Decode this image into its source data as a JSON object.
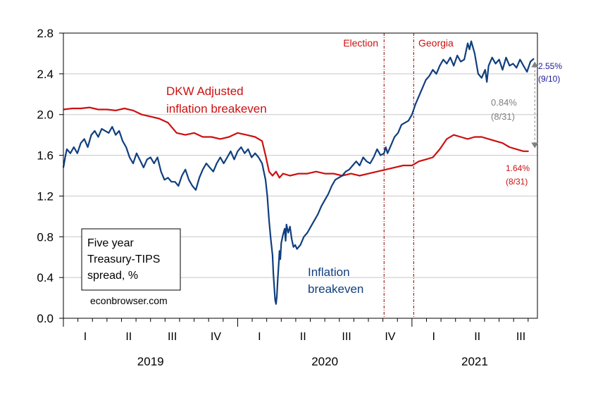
{
  "chart_data": {
    "type": "line",
    "title": "",
    "ylim": [
      0.0,
      2.8
    ],
    "yticks": [
      0.0,
      0.4,
      0.8,
      1.2,
      1.6,
      2.0,
      2.4,
      2.8
    ],
    "ytick_labels": [
      "0.0",
      "0.4",
      "0.8",
      "1.2",
      "1.6",
      "2.0",
      "2.4",
      "2.8"
    ],
    "xlim": [
      2019.0,
      2021.72
    ],
    "quarter_labels": [
      {
        "label": "I",
        "x": 2019.125
      },
      {
        "label": "II",
        "x": 2019.375
      },
      {
        "label": "III",
        "x": 2019.625
      },
      {
        "label": "IV",
        "x": 2019.875
      },
      {
        "label": "I",
        "x": 2020.125
      },
      {
        "label": "II",
        "x": 2020.375
      },
      {
        "label": "III",
        "x": 2020.625
      },
      {
        "label": "IV",
        "x": 2020.875
      },
      {
        "label": "I",
        "x": 2021.125
      },
      {
        "label": "II",
        "x": 2021.375
      },
      {
        "label": "III",
        "x": 2021.625
      }
    ],
    "year_labels": [
      {
        "label": "2019",
        "x": 2019.5
      },
      {
        "label": "2020",
        "x": 2020.5
      },
      {
        "label": "2021",
        "x": 2021.36
      }
    ],
    "grid": true,
    "vlines": [
      {
        "label": "Election",
        "x": 2020.84
      },
      {
        "label": "Georgia",
        "x": 2021.01
      }
    ],
    "series": [
      {
        "name": "Inflation breakeven",
        "color": "#0f3f7e",
        "points": [
          [
            2019.0,
            1.48
          ],
          [
            2019.01,
            1.58
          ],
          [
            2019.02,
            1.66
          ],
          [
            2019.04,
            1.62
          ],
          [
            2019.06,
            1.68
          ],
          [
            2019.08,
            1.62
          ],
          [
            2019.1,
            1.72
          ],
          [
            2019.12,
            1.76
          ],
          [
            2019.14,
            1.68
          ],
          [
            2019.16,
            1.8
          ],
          [
            2019.18,
            1.84
          ],
          [
            2019.2,
            1.78
          ],
          [
            2019.22,
            1.86
          ],
          [
            2019.24,
            1.84
          ],
          [
            2019.26,
            1.82
          ],
          [
            2019.28,
            1.88
          ],
          [
            2019.3,
            1.8
          ],
          [
            2019.32,
            1.84
          ],
          [
            2019.34,
            1.74
          ],
          [
            2019.36,
            1.68
          ],
          [
            2019.38,
            1.58
          ],
          [
            2019.4,
            1.52
          ],
          [
            2019.42,
            1.62
          ],
          [
            2019.44,
            1.55
          ],
          [
            2019.46,
            1.48
          ],
          [
            2019.48,
            1.56
          ],
          [
            2019.5,
            1.58
          ],
          [
            2019.52,
            1.52
          ],
          [
            2019.54,
            1.58
          ],
          [
            2019.56,
            1.44
          ],
          [
            2019.58,
            1.36
          ],
          [
            2019.6,
            1.38
          ],
          [
            2019.62,
            1.34
          ],
          [
            2019.64,
            1.34
          ],
          [
            2019.66,
            1.3
          ],
          [
            2019.68,
            1.4
          ],
          [
            2019.7,
            1.46
          ],
          [
            2019.72,
            1.36
          ],
          [
            2019.74,
            1.3
          ],
          [
            2019.76,
            1.26
          ],
          [
            2019.78,
            1.38
          ],
          [
            2019.8,
            1.46
          ],
          [
            2019.82,
            1.52
          ],
          [
            2019.84,
            1.48
          ],
          [
            2019.86,
            1.44
          ],
          [
            2019.88,
            1.52
          ],
          [
            2019.9,
            1.58
          ],
          [
            2019.92,
            1.52
          ],
          [
            2019.94,
            1.58
          ],
          [
            2019.96,
            1.64
          ],
          [
            2019.98,
            1.56
          ],
          [
            2020.0,
            1.64
          ],
          [
            2020.02,
            1.68
          ],
          [
            2020.04,
            1.62
          ],
          [
            2020.06,
            1.66
          ],
          [
            2020.08,
            1.58
          ],
          [
            2020.1,
            1.62
          ],
          [
            2020.12,
            1.58
          ],
          [
            2020.14,
            1.52
          ],
          [
            2020.16,
            1.36
          ],
          [
            2020.17,
            1.2
          ],
          [
            2020.18,
            0.96
          ],
          [
            2020.19,
            0.78
          ],
          [
            2020.2,
            0.62
          ],
          [
            2020.205,
            0.44
          ],
          [
            2020.21,
            0.3
          ],
          [
            2020.215,
            0.18
          ],
          [
            2020.22,
            0.14
          ],
          [
            2020.225,
            0.22
          ],
          [
            2020.23,
            0.38
          ],
          [
            2020.235,
            0.52
          ],
          [
            2020.24,
            0.66
          ],
          [
            2020.245,
            0.58
          ],
          [
            2020.25,
            0.74
          ],
          [
            2020.26,
            0.82
          ],
          [
            2020.27,
            0.88
          ],
          [
            2020.275,
            0.76
          ],
          [
            2020.28,
            0.92
          ],
          [
            2020.29,
            0.84
          ],
          [
            2020.3,
            0.9
          ],
          [
            2020.31,
            0.78
          ],
          [
            2020.32,
            0.7
          ],
          [
            2020.33,
            0.72
          ],
          [
            2020.34,
            0.68
          ],
          [
            2020.36,
            0.72
          ],
          [
            2020.38,
            0.8
          ],
          [
            2020.4,
            0.84
          ],
          [
            2020.42,
            0.9
          ],
          [
            2020.44,
            0.96
          ],
          [
            2020.46,
            1.02
          ],
          [
            2020.48,
            1.1
          ],
          [
            2020.5,
            1.16
          ],
          [
            2020.52,
            1.22
          ],
          [
            2020.54,
            1.3
          ],
          [
            2020.56,
            1.36
          ],
          [
            2020.58,
            1.38
          ],
          [
            2020.6,
            1.4
          ],
          [
            2020.62,
            1.44
          ],
          [
            2020.64,
            1.46
          ],
          [
            2020.66,
            1.5
          ],
          [
            2020.68,
            1.54
          ],
          [
            2020.7,
            1.5
          ],
          [
            2020.72,
            1.58
          ],
          [
            2020.74,
            1.54
          ],
          [
            2020.76,
            1.52
          ],
          [
            2020.78,
            1.58
          ],
          [
            2020.8,
            1.66
          ],
          [
            2020.82,
            1.6
          ],
          [
            2020.84,
            1.62
          ],
          [
            2020.85,
            1.68
          ],
          [
            2020.86,
            1.62
          ],
          [
            2020.88,
            1.7
          ],
          [
            2020.9,
            1.78
          ],
          [
            2020.92,
            1.82
          ],
          [
            2020.94,
            1.9
          ],
          [
            2020.96,
            1.92
          ],
          [
            2020.98,
            1.94
          ],
          [
            2021.0,
            2.0
          ],
          [
            2021.02,
            2.1
          ],
          [
            2021.04,
            2.18
          ],
          [
            2021.06,
            2.26
          ],
          [
            2021.08,
            2.34
          ],
          [
            2021.1,
            2.38
          ],
          [
            2021.12,
            2.44
          ],
          [
            2021.14,
            2.4
          ],
          [
            2021.16,
            2.48
          ],
          [
            2021.18,
            2.54
          ],
          [
            2021.2,
            2.5
          ],
          [
            2021.22,
            2.56
          ],
          [
            2021.24,
            2.48
          ],
          [
            2021.26,
            2.58
          ],
          [
            2021.28,
            2.52
          ],
          [
            2021.3,
            2.54
          ],
          [
            2021.31,
            2.62
          ],
          [
            2021.32,
            2.7
          ],
          [
            2021.33,
            2.64
          ],
          [
            2021.34,
            2.72
          ],
          [
            2021.35,
            2.66
          ],
          [
            2021.36,
            2.6
          ],
          [
            2021.37,
            2.5
          ],
          [
            2021.38,
            2.4
          ],
          [
            2021.4,
            2.36
          ],
          [
            2021.42,
            2.44
          ],
          [
            2021.43,
            2.32
          ],
          [
            2021.44,
            2.48
          ],
          [
            2021.46,
            2.56
          ],
          [
            2021.48,
            2.5
          ],
          [
            2021.5,
            2.54
          ],
          [
            2021.52,
            2.44
          ],
          [
            2021.54,
            2.56
          ],
          [
            2021.56,
            2.48
          ],
          [
            2021.58,
            2.5
          ],
          [
            2021.6,
            2.46
          ],
          [
            2021.62,
            2.54
          ],
          [
            2021.64,
            2.48
          ],
          [
            2021.66,
            2.42
          ],
          [
            2021.68,
            2.52
          ],
          [
            2021.7,
            2.55
          ]
        ]
      },
      {
        "name": "DKW Adjusted inflation breakeven",
        "color": "#cc1010",
        "points": [
          [
            2019.0,
            2.05
          ],
          [
            2019.05,
            2.06
          ],
          [
            2019.1,
            2.06
          ],
          [
            2019.15,
            2.07
          ],
          [
            2019.2,
            2.05
          ],
          [
            2019.25,
            2.05
          ],
          [
            2019.3,
            2.04
          ],
          [
            2019.35,
            2.06
          ],
          [
            2019.4,
            2.04
          ],
          [
            2019.45,
            2.0
          ],
          [
            2019.5,
            1.98
          ],
          [
            2019.55,
            1.96
          ],
          [
            2019.6,
            1.92
          ],
          [
            2019.65,
            1.82
          ],
          [
            2019.7,
            1.8
          ],
          [
            2019.75,
            1.82
          ],
          [
            2019.8,
            1.78
          ],
          [
            2019.85,
            1.78
          ],
          [
            2019.9,
            1.76
          ],
          [
            2019.95,
            1.78
          ],
          [
            2020.0,
            1.82
          ],
          [
            2020.05,
            1.8
          ],
          [
            2020.1,
            1.78
          ],
          [
            2020.14,
            1.74
          ],
          [
            2020.16,
            1.6
          ],
          [
            2020.18,
            1.44
          ],
          [
            2020.2,
            1.4
          ],
          [
            2020.22,
            1.44
          ],
          [
            2020.24,
            1.38
          ],
          [
            2020.26,
            1.42
          ],
          [
            2020.3,
            1.4
          ],
          [
            2020.35,
            1.42
          ],
          [
            2020.4,
            1.42
          ],
          [
            2020.45,
            1.44
          ],
          [
            2020.5,
            1.42
          ],
          [
            2020.55,
            1.42
          ],
          [
            2020.6,
            1.4
          ],
          [
            2020.65,
            1.42
          ],
          [
            2020.7,
            1.4
          ],
          [
            2020.75,
            1.42
          ],
          [
            2020.8,
            1.44
          ],
          [
            2020.85,
            1.46
          ],
          [
            2020.9,
            1.48
          ],
          [
            2020.95,
            1.5
          ],
          [
            2021.0,
            1.5
          ],
          [
            2021.04,
            1.54
          ],
          [
            2021.08,
            1.56
          ],
          [
            2021.12,
            1.58
          ],
          [
            2021.16,
            1.66
          ],
          [
            2021.2,
            1.76
          ],
          [
            2021.24,
            1.8
          ],
          [
            2021.28,
            1.78
          ],
          [
            2021.32,
            1.76
          ],
          [
            2021.36,
            1.78
          ],
          [
            2021.4,
            1.78
          ],
          [
            2021.44,
            1.76
          ],
          [
            2021.48,
            1.74
          ],
          [
            2021.52,
            1.72
          ],
          [
            2021.56,
            1.68
          ],
          [
            2021.6,
            1.66
          ],
          [
            2021.64,
            1.64
          ],
          [
            2021.67,
            1.64
          ]
        ]
      }
    ],
    "annotations": {
      "dkw_label_line1": "DKW Adjusted",
      "dkw_label_line2": "inflation breakeven",
      "ib_label_line1": "Inflation",
      "ib_label_line2": "breakeven",
      "legend_line1": "Five year",
      "legend_line2": "Treasury-TIPS",
      "legend_line3": "spread, %",
      "source": "econbrowser.com",
      "end_ib_value": "2.55%",
      "end_ib_date": "(9/10)",
      "end_dkw_value": "1.64%",
      "end_dkw_date": "(8/31)",
      "spread_value": "0.84%",
      "spread_date": "(8/31)"
    },
    "colors": {
      "inflation_breakeven": "#0f3f7e",
      "dkw": "#cc1010",
      "vline": "#8b0000",
      "grid": "#c8c8c8",
      "spread_arrow": "#808080",
      "end_ib_label": "#1a1a9a"
    }
  }
}
